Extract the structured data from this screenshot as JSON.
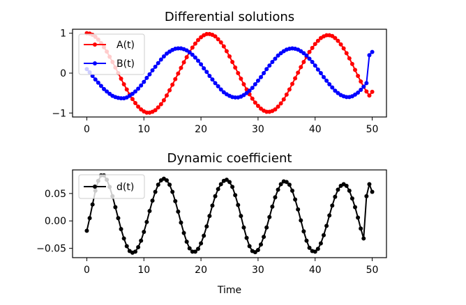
{
  "chart_data": [
    {
      "type": "line",
      "title": "Differential solutions",
      "xlabel": "",
      "ylabel": "",
      "xlim": [
        -2.5,
        52.5
      ],
      "ylim": [
        -1.1,
        1.1
      ],
      "xticks": [
        0,
        10,
        20,
        30,
        40,
        50
      ],
      "yticks": [
        -1,
        0,
        1
      ],
      "ytick_labels": [
        "−1",
        "0",
        "1"
      ],
      "legend": "upper-left",
      "grid": false,
      "series": [
        {
          "name": "A(t)",
          "color": "#ff0000",
          "marker": "circle",
          "formula": "cos(2*pi*t/18.5) with decaying amplitude",
          "x_start": 0,
          "x_end": 50,
          "n_points": 101,
          "y": [
            1.0,
            0.99,
            0.96,
            0.91,
            0.84,
            0.75,
            0.65,
            0.54,
            0.41,
            0.28,
            0.14,
            0.0,
            -0.14,
            -0.28,
            -0.41,
            -0.54,
            -0.65,
            -0.75,
            -0.84,
            -0.91,
            -0.96,
            -0.99,
            -0.99,
            -0.97,
            -0.93,
            -0.86,
            -0.78,
            -0.68,
            -0.56,
            -0.43,
            -0.29,
            -0.15,
            -0.01,
            0.13,
            0.27,
            0.4,
            0.53,
            0.64,
            0.74,
            0.83,
            0.9,
            0.95,
            0.98,
            0.98,
            0.96,
            0.92,
            0.85,
            0.77,
            0.67,
            0.55,
            0.42,
            0.28,
            0.14,
            0.0,
            -0.14,
            -0.28,
            -0.41,
            -0.53,
            -0.64,
            -0.74,
            -0.82,
            -0.89,
            -0.94,
            -0.97,
            -0.97,
            -0.95,
            -0.91,
            -0.84,
            -0.76,
            -0.66,
            -0.54,
            -0.41,
            -0.27,
            -0.13,
            0.01,
            0.15,
            0.28,
            0.41,
            0.53,
            0.63,
            0.73,
            0.81,
            0.88,
            0.92,
            0.95,
            0.95,
            0.93,
            0.88,
            0.81,
            0.72,
            0.62,
            0.5,
            0.37,
            0.23,
            0.08,
            -0.07,
            -0.21,
            -0.34,
            -0.46,
            -0.56,
            -0.47
          ]
        },
        {
          "name": "B(t)",
          "color": "#0000ff",
          "marker": "circle",
          "x_start": 0,
          "x_end": 50,
          "n_points": 101,
          "y": [
            0.1,
            0.02,
            -0.07,
            -0.16,
            -0.24,
            -0.32,
            -0.4,
            -0.46,
            -0.52,
            -0.57,
            -0.6,
            -0.62,
            -0.63,
            -0.63,
            -0.61,
            -0.57,
            -0.52,
            -0.46,
            -0.39,
            -0.31,
            -0.22,
            -0.12,
            -0.03,
            0.07,
            0.16,
            0.25,
            0.34,
            0.42,
            0.49,
            0.54,
            0.58,
            0.61,
            0.62,
            0.62,
            0.6,
            0.57,
            0.52,
            0.46,
            0.39,
            0.31,
            0.22,
            0.12,
            0.03,
            -0.07,
            -0.16,
            -0.25,
            -0.33,
            -0.41,
            -0.48,
            -0.53,
            -0.57,
            -0.6,
            -0.61,
            -0.61,
            -0.59,
            -0.55,
            -0.5,
            -0.44,
            -0.37,
            -0.28,
            -0.19,
            -0.1,
            0.0,
            0.1,
            0.19,
            0.28,
            0.36,
            0.44,
            0.5,
            0.55,
            0.59,
            0.61,
            0.62,
            0.61,
            0.59,
            0.55,
            0.5,
            0.44,
            0.36,
            0.28,
            0.19,
            0.09,
            0.0,
            -0.1,
            -0.19,
            -0.28,
            -0.36,
            -0.44,
            -0.5,
            -0.55,
            -0.58,
            -0.6,
            -0.6,
            -0.58,
            -0.54,
            -0.49,
            -0.42,
            -0.34,
            -0.25,
            0.45,
            0.53
          ]
        }
      ]
    },
    {
      "type": "line",
      "title": "Dynamic coefficient",
      "xlabel": "Time",
      "ylabel": "",
      "xlim": [
        -2.5,
        52.5
      ],
      "ylim": [
        -0.067,
        0.093
      ],
      "xticks": [
        0,
        10,
        20,
        30,
        40,
        50
      ],
      "yticks": [
        -0.05,
        0.0,
        0.05
      ],
      "ytick_labels": [
        "−0.05",
        "0.00",
        "0.05"
      ],
      "legend": "upper-left",
      "grid": false,
      "series": [
        {
          "name": "d(t)",
          "color": "#000000",
          "marker": "circle",
          "x_start": 0,
          "x_end": 50,
          "n_points": 101,
          "y": [
            -0.018,
            0.005,
            0.03,
            0.055,
            0.073,
            0.083,
            0.083,
            0.075,
            0.062,
            0.045,
            0.025,
            0.005,
            -0.015,
            -0.032,
            -0.046,
            -0.055,
            -0.058,
            -0.056,
            -0.048,
            -0.036,
            -0.02,
            -0.002,
            0.018,
            0.037,
            0.053,
            0.066,
            0.074,
            0.077,
            0.074,
            0.066,
            0.053,
            0.036,
            0.017,
            -0.003,
            -0.022,
            -0.038,
            -0.05,
            -0.056,
            -0.056,
            -0.051,
            -0.041,
            -0.027,
            -0.01,
            0.009,
            0.028,
            0.045,
            0.058,
            0.067,
            0.073,
            0.075,
            0.071,
            0.062,
            0.047,
            0.029,
            0.009,
            -0.012,
            -0.031,
            -0.046,
            -0.055,
            -0.057,
            -0.053,
            -0.043,
            -0.029,
            -0.012,
            0.007,
            0.026,
            0.043,
            0.057,
            0.067,
            0.072,
            0.071,
            0.066,
            0.055,
            0.039,
            0.021,
            0.001,
            -0.019,
            -0.036,
            -0.049,
            -0.055,
            -0.056,
            -0.051,
            -0.041,
            -0.026,
            -0.009,
            0.01,
            0.028,
            0.044,
            0.057,
            0.064,
            0.067,
            0.064,
            0.055,
            0.041,
            0.025,
            0.006,
            -0.014,
            -0.032,
            0.045,
            0.067,
            0.053
          ]
        }
      ]
    }
  ]
}
